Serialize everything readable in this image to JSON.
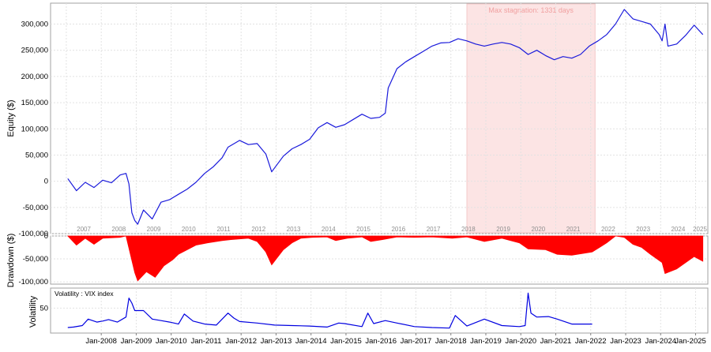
{
  "chart_data": [
    {
      "type": "line",
      "ylabel": "Equity ($)",
      "ylim": [
        -100000,
        340000
      ],
      "yticks": [
        -100000,
        -50000,
        0,
        50000,
        100000,
        150000,
        200000,
        250000,
        300000
      ],
      "ytick_labels": [
        "-100,000",
        "-50,000",
        "0",
        "50,000",
        "100,000",
        "150,000",
        "200,000",
        "250,000",
        "300,000"
      ],
      "year_labels": [
        "2007",
        "2008",
        "2009",
        "2010",
        "2011",
        "2012",
        "2013",
        "2014",
        "2015",
        "2016",
        "2017",
        "2018",
        "2019",
        "2020",
        "2021",
        "2022",
        "2023",
        "2024",
        "2025"
      ],
      "annotation": {
        "text": "Max stagnation: 1331 days",
        "start": "2018-06",
        "end": "2022-02",
        "color": "#fce4e4"
      },
      "series": [
        {
          "color": "#1a1adb",
          "x": [
            "2007-01",
            "2007-04",
            "2007-07",
            "2007-10",
            "2008-01",
            "2008-04",
            "2008-07",
            "2008-09",
            "2008-10",
            "2008-11",
            "2008-12",
            "2009-01",
            "2009-03",
            "2009-06",
            "2009-09",
            "2009-12",
            "2010-03",
            "2010-06",
            "2010-09",
            "2010-12",
            "2011-03",
            "2011-06",
            "2011-08",
            "2011-12",
            "2012-03",
            "2012-06",
            "2012-09",
            "2012-11",
            "2013-03",
            "2013-06",
            "2013-09",
            "2013-12",
            "2014-03",
            "2014-06",
            "2014-09",
            "2014-12",
            "2015-03",
            "2015-06",
            "2015-09",
            "2015-12",
            "2016-02",
            "2016-03",
            "2016-06",
            "2016-09",
            "2016-12",
            "2017-03",
            "2017-06",
            "2017-09",
            "2017-12",
            "2018-03",
            "2018-06",
            "2018-09",
            "2018-12",
            "2019-03",
            "2019-06",
            "2019-09",
            "2019-12",
            "2020-03",
            "2020-06",
            "2020-09",
            "2020-12",
            "2021-03",
            "2021-06",
            "2021-09",
            "2021-12",
            "2022-03",
            "2022-06",
            "2022-09",
            "2022-12",
            "2023-03",
            "2023-06",
            "2023-09",
            "2023-12",
            "2024-01",
            "2024-02",
            "2024-03",
            "2024-06",
            "2024-09",
            "2024-12",
            "2025-03"
          ],
          "values": [
            5000,
            -18000,
            -2000,
            -12000,
            2000,
            -3000,
            12000,
            15000,
            -5000,
            -60000,
            -75000,
            -82000,
            -55000,
            -72000,
            -40000,
            -35000,
            -25000,
            -15000,
            -2000,
            15000,
            28000,
            45000,
            65000,
            78000,
            70000,
            72000,
            52000,
            18000,
            48000,
            62000,
            70000,
            80000,
            102000,
            112000,
            103000,
            108000,
            118000,
            128000,
            120000,
            122000,
            130000,
            178000,
            215000,
            228000,
            238000,
            248000,
            258000,
            264000,
            265000,
            272000,
            268000,
            262000,
            258000,
            262000,
            265000,
            262000,
            255000,
            242000,
            250000,
            240000,
            232000,
            238000,
            235000,
            242000,
            258000,
            268000,
            280000,
            300000,
            328000,
            310000,
            305000,
            300000,
            280000,
            268000,
            300000,
            258000,
            262000,
            278000,
            298000,
            280000
          ]
        }
      ]
    },
    {
      "type": "area",
      "ylabel": "Drawdown ($)",
      "ylim": [
        -105000,
        0
      ],
      "yticks": [
        -100000,
        -50000,
        0
      ],
      "ytick_labels": [
        "-100,000",
        "-50,000",
        "0"
      ],
      "series": [
        {
          "color": "#ff0000",
          "x": [
            "2007-01",
            "2007-04",
            "2007-07",
            "2007-10",
            "2008-01",
            "2008-07",
            "2008-09",
            "2008-12",
            "2009-01",
            "2009-04",
            "2009-07",
            "2009-10",
            "2010-01",
            "2010-03",
            "2010-06",
            "2010-09",
            "2011-01",
            "2011-06",
            "2011-09",
            "2012-03",
            "2012-06",
            "2012-09",
            "2012-11",
            "2013-03",
            "2013-06",
            "2013-09",
            "2014-01",
            "2014-06",
            "2014-09",
            "2015-01",
            "2015-06",
            "2015-09",
            "2016-01",
            "2016-06",
            "2016-12",
            "2017-06",
            "2018-01",
            "2018-06",
            "2018-12",
            "2019-06",
            "2019-12",
            "2020-03",
            "2020-09",
            "2021-01",
            "2021-06",
            "2022-01",
            "2022-06",
            "2022-09",
            "2022-12",
            "2023-03",
            "2023-06",
            "2023-09",
            "2024-01",
            "2024-02",
            "2024-06",
            "2024-12",
            "2025-03"
          ],
          "values": [
            0,
            -20000,
            -5000,
            -18000,
            -5000,
            -3000,
            0,
            -80000,
            -98000,
            -78000,
            -90000,
            -65000,
            -52000,
            -40000,
            -30000,
            -20000,
            -15000,
            -10000,
            -8000,
            -5000,
            -12000,
            -35000,
            -63000,
            -30000,
            -15000,
            -5000,
            -3000,
            -2000,
            -10000,
            -5000,
            -2000,
            -12000,
            -8000,
            -2000,
            -3000,
            -2000,
            -5000,
            -2000,
            -12000,
            -5000,
            -15000,
            -28000,
            -30000,
            -40000,
            -42000,
            -35000,
            -15000,
            0,
            -3000,
            -18000,
            -25000,
            -40000,
            -58000,
            -82000,
            -72000,
            -45000,
            -55000
          ]
        }
      ]
    },
    {
      "type": "line",
      "ylabel": "Volatility",
      "legend": "Volatility : VIX index",
      "ylim": [
        0,
        90
      ],
      "yticks": [
        0,
        50
      ],
      "ytick_labels": [
        "",
        "50"
      ],
      "xtick_labels": [
        "Jan-2008",
        "Jan-2009",
        "Jan-2010",
        "Jan-2011",
        "Jan-2012",
        "Jan-2013",
        "Jan-2014",
        "Jan-2015",
        "Jan-2016",
        "Jan-2017",
        "Jan-2018",
        "Jan-2019",
        "Jan-2020",
        "Jan-2021",
        "Jan-2022",
        "Jan-2023",
        "Jan-2024",
        "Jan-2025"
      ],
      "series": [
        {
          "color": "#0000e0",
          "x": [
            "2007-01",
            "2007-03",
            "2007-06",
            "2007-08",
            "2007-11",
            "2008-01",
            "2008-03",
            "2008-06",
            "2008-09",
            "2008-10",
            "2008-11",
            "2008-12",
            "2009-03",
            "2009-06",
            "2009-09",
            "2009-12",
            "2010-03",
            "2010-05",
            "2010-08",
            "2010-12",
            "2011-04",
            "2011-08",
            "2011-10",
            "2011-12",
            "2012-06",
            "2012-12",
            "2013-06",
            "2013-12",
            "2014-06",
            "2014-10",
            "2014-12",
            "2015-06",
            "2015-08",
            "2015-10",
            "2016-02",
            "2016-06",
            "2016-12",
            "2017-06",
            "2017-12",
            "2018-02",
            "2018-06",
            "2018-12",
            "2019-06",
            "2019-12",
            "2020-02",
            "2020-03",
            "2020-04",
            "2020-06",
            "2020-10",
            "2021-01",
            "2021-06",
            "2021-12",
            "2022-01"
          ],
          "values": [
            11,
            12,
            15,
            28,
            22,
            24,
            27,
            22,
            32,
            70,
            60,
            45,
            45,
            28,
            25,
            22,
            18,
            38,
            24,
            18,
            16,
            40,
            30,
            23,
            20,
            16,
            15,
            14,
            12,
            20,
            19,
            13,
            40,
            19,
            25,
            20,
            13,
            11,
            10,
            35,
            14,
            28,
            15,
            13,
            15,
            80,
            40,
            32,
            33,
            28,
            18,
            18,
            18
          ]
        }
      ]
    }
  ]
}
